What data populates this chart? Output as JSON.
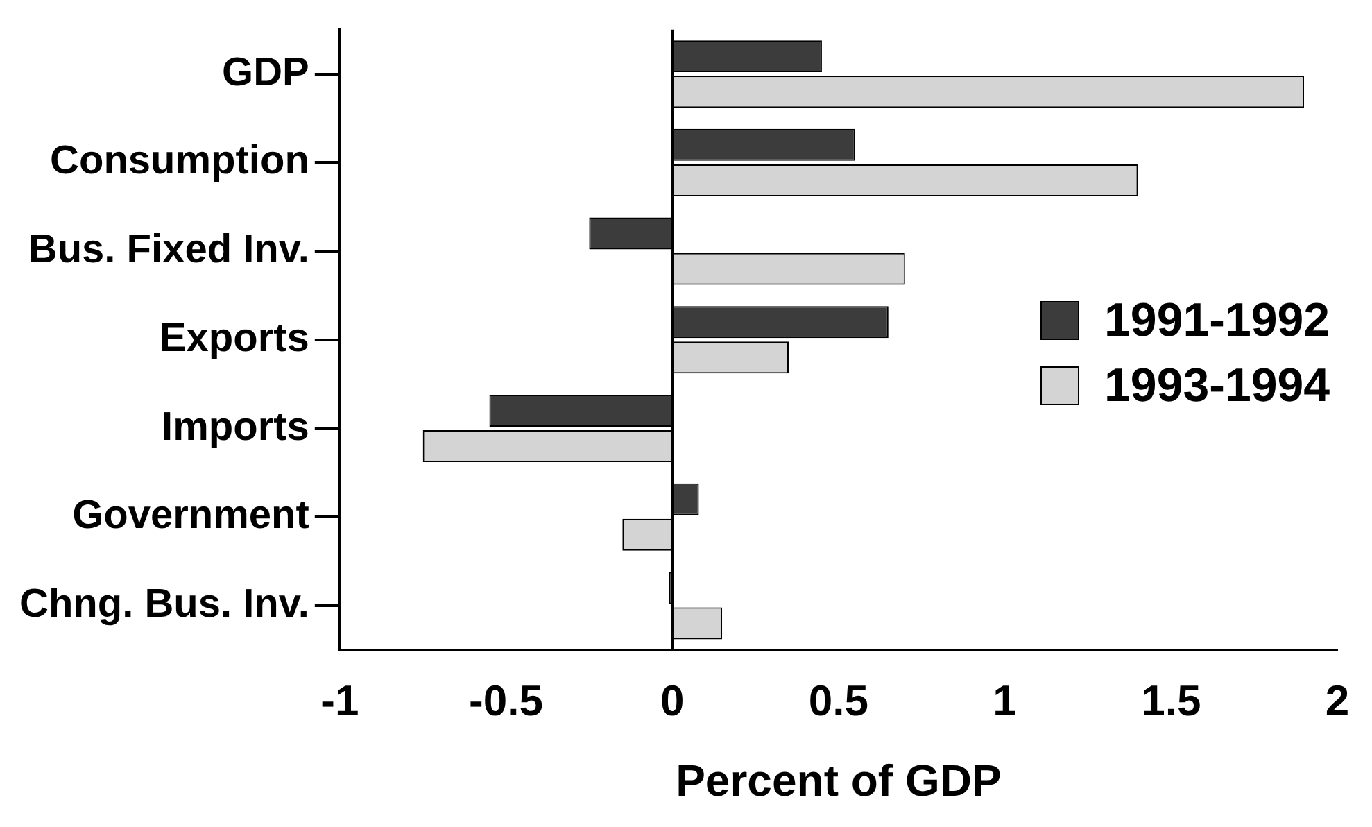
{
  "chart_data": {
    "type": "bar",
    "orientation": "horizontal",
    "xlabel": "Percent of GDP",
    "categories": [
      "GDP",
      "Consumption",
      "Bus. Fixed Inv.",
      "Exports",
      "Imports",
      "Government",
      "Chng. Bus. Inv."
    ],
    "series": [
      {
        "name": "1991-1992",
        "color": "#3c3c3c",
        "values": [
          0.45,
          0.55,
          -0.25,
          0.65,
          -0.55,
          0.08,
          -0.01
        ]
      },
      {
        "name": "1993-1994",
        "color": "#d4d4d4",
        "values": [
          1.9,
          1.4,
          0.7,
          0.35,
          -0.75,
          -0.15,
          0.15
        ]
      }
    ],
    "xlim": [
      -1,
      2
    ],
    "xticks": [
      -1,
      -0.5,
      0,
      0.5,
      1,
      1.5,
      2
    ],
    "ref_lines": [
      {
        "axis": "x",
        "value": 0,
        "color": "#000000"
      }
    ],
    "grid": false,
    "legend": "right"
  }
}
